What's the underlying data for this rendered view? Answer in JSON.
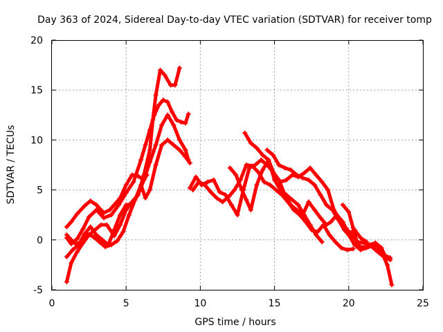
{
  "chart_data": {
    "type": "scatter",
    "title": "Day 363 of 2024, Sidereal Day-to-day VTEC variation (SDTVAR) for receiver tomp",
    "xlabel": "GPS time / hours",
    "ylabel": "SDTVAR / TECUs",
    "xlim": [
      0,
      25
    ],
    "ylim": [
      -5,
      20
    ],
    "xticks": [
      "0",
      "5",
      "10",
      "15",
      "20",
      "25"
    ],
    "yticks": [
      "-5",
      "0",
      "5",
      "10",
      "15",
      "20"
    ],
    "grid": true,
    "marker": "+",
    "color": "#ff0000",
    "series": [
      {
        "x": [
          1.0,
          1.3,
          1.7,
          2.2,
          2.6,
          3.0,
          3.5,
          3.9,
          4.2,
          4.6,
          5.0,
          5.4,
          5.8,
          6.2,
          6.4
        ],
        "y": [
          1.3,
          1.8,
          2.6,
          3.4,
          3.9,
          3.5,
          2.7,
          3.0,
          3.5,
          4.2,
          5.5,
          6.5,
          6.4,
          6.0,
          6.5
        ]
      },
      {
        "x": [
          1.0,
          1.3,
          1.7,
          2.1,
          2.5,
          3.0,
          3.5,
          4.0,
          4.5,
          5.0,
          5.5,
          6.0,
          6.3,
          6.6,
          6.9,
          7.2,
          7.5,
          7.8,
          8.1,
          8.4,
          8.7,
          9.0,
          9.2
        ],
        "y": [
          0.2,
          -0.4,
          0.1,
          1.1,
          2.3,
          3.0,
          2.2,
          2.5,
          3.5,
          4.7,
          5.8,
          8.0,
          9.5,
          11.0,
          12.5,
          13.5,
          14.0,
          13.8,
          12.8,
          12.0,
          11.8,
          11.7,
          12.6
        ]
      },
      {
        "x": [
          1.0,
          1.4,
          1.8,
          2.2,
          2.6,
          3.0,
          3.4,
          3.8,
          4.2,
          4.6,
          5.0,
          5.4,
          5.8,
          6.2,
          6.6,
          6.8,
          7.0,
          7.3,
          7.6,
          8.0,
          8.3,
          8.6
        ],
        "y": [
          -1.7,
          -1.0,
          -0.5,
          0.6,
          1.3,
          0.5,
          0.0,
          -0.5,
          1.0,
          2.5,
          3.5,
          3.6,
          4.5,
          6.5,
          9.0,
          12.0,
          14.5,
          17.0,
          16.5,
          15.5,
          15.5,
          17.2
        ]
      },
      {
        "x": [
          1.0,
          1.3,
          1.7,
          2.1,
          2.5,
          2.9,
          3.3,
          3.7,
          4.2,
          4.6,
          5.0,
          5.4,
          5.8,
          6.2,
          6.6,
          7.0,
          7.4,
          7.8,
          8.2,
          8.6,
          9.0,
          9.2
        ],
        "y": [
          -4.2,
          -2.3,
          -1.2,
          -0.3,
          0.5,
          1.0,
          1.5,
          1.5,
          0.4,
          1.5,
          3.0,
          3.8,
          4.5,
          6.0,
          7.8,
          9.5,
          11.5,
          12.5,
          11.5,
          10.0,
          9.0,
          8.0
        ]
      },
      {
        "x": [
          1.0,
          1.3,
          1.6,
          2.0,
          2.4,
          2.8,
          3.2,
          3.6,
          4.0,
          4.4,
          4.8,
          5.2,
          5.6,
          6.0,
          6.3,
          6.6,
          7.0,
          7.4,
          7.8,
          8.2,
          8.6,
          9.0,
          9.3
        ],
        "y": [
          0.5,
          0.0,
          -0.4,
          -0.2,
          0.6,
          0.3,
          -0.2,
          -0.7,
          -0.5,
          -0.1,
          0.8,
          2.5,
          4.0,
          5.5,
          4.2,
          5.0,
          7.5,
          9.5,
          10.0,
          9.5,
          9.0,
          8.3,
          7.7
        ]
      },
      {
        "x": [
          9.3,
          9.7,
          10.1,
          10.5,
          10.9,
          11.3,
          11.7,
          12.1,
          12.5,
          12.9,
          13.3,
          13.7,
          14.1,
          14.5,
          14.9,
          15.3,
          15.7,
          16.1,
          16.5,
          16.9,
          17.3,
          17.7,
          18.1,
          18.5,
          18.8,
          19.2,
          19.6,
          20.0,
          20.4,
          20.8,
          21.2
        ],
        "y": [
          5.2,
          6.3,
          5.5,
          5.8,
          6.0,
          4.8,
          4.5,
          3.5,
          2.5,
          5.0,
          7.2,
          7.5,
          8.0,
          7.5,
          6.8,
          6.0,
          4.5,
          3.5,
          3.0,
          2.5,
          3.8,
          3.0,
          2.2,
          1.5,
          1.8,
          2.5,
          1.8,
          0.6,
          1.0,
          0.2,
          -0.2
        ]
      },
      {
        "x": [
          9.5,
          9.9,
          10.3,
          10.7,
          11.1,
          11.5,
          11.9,
          12.3,
          12.7,
          13.1,
          13.5,
          13.9,
          14.3,
          14.7,
          15.1,
          15.5,
          15.9,
          16.3,
          16.7,
          17.1,
          17.5,
          17.9,
          18.3,
          18.7,
          19.1,
          19.5,
          19.9,
          20.3
        ],
        "y": [
          5.0,
          5.8,
          5.5,
          4.8,
          4.2,
          3.8,
          4.3,
          5.0,
          6.0,
          7.5,
          7.4,
          6.8,
          5.8,
          5.5,
          5.0,
          4.5,
          3.8,
          3.0,
          2.5,
          1.8,
          1.0,
          0.8,
          1.5,
          0.5,
          -0.2,
          -0.8,
          -1.0,
          -0.9
        ]
      },
      {
        "x": [
          12.0,
          12.4,
          12.8,
          13.1,
          13.4,
          13.8,
          14.2,
          14.6,
          15.0,
          15.4,
          15.8,
          16.2,
          16.6,
          17.0,
          17.4,
          17.8,
          18.2
        ],
        "y": [
          7.2,
          6.5,
          5.0,
          4.0,
          3.0,
          5.5,
          7.0,
          8.0,
          6.0,
          5.0,
          4.5,
          4.0,
          3.5,
          2.5,
          1.5,
          0.5,
          -0.2
        ]
      },
      {
        "x": [
          13.0,
          13.4,
          13.8,
          14.2,
          14.6,
          15.0,
          15.4,
          15.8,
          16.2,
          16.6,
          17.0,
          17.4,
          17.8,
          18.2,
          18.6,
          19.0,
          19.4,
          19.8,
          20.2,
          20.6,
          21.0,
          21.4,
          21.8,
          22.2,
          22.5,
          22.8
        ],
        "y": [
          10.7,
          9.7,
          9.2,
          8.5,
          8.0,
          6.5,
          5.8,
          6.0,
          6.5,
          6.3,
          6.7,
          7.2,
          6.5,
          5.8,
          5.0,
          3.0,
          2.0,
          1.2,
          0.5,
          -0.2,
          -0.3,
          -0.5,
          -1.0,
          -1.5,
          -1.6,
          -1.8
        ]
      },
      {
        "x": [
          14.5,
          14.9,
          15.3,
          15.7,
          16.1,
          16.5,
          16.9,
          17.3,
          17.7,
          18.1,
          18.5,
          18.9,
          19.3,
          19.7,
          20.0,
          20.4,
          20.8,
          21.2,
          21.6,
          22.0,
          22.3,
          22.6,
          22.9
        ],
        "y": [
          9.0,
          8.5,
          7.5,
          7.2,
          7.0,
          6.5,
          6.2,
          6.0,
          5.5,
          4.5,
          3.5,
          3.0,
          2.0,
          1.0,
          0.5,
          -0.5,
          -1.0,
          -0.8,
          -0.6,
          -0.8,
          -1.5,
          -2.5,
          -4.5
        ]
      },
      {
        "x": [
          19.6,
          20.0,
          20.3,
          20.6,
          21.0,
          21.4,
          21.8,
          22.2,
          22.5,
          22.8
        ],
        "y": [
          3.5,
          2.8,
          1.2,
          -0.5,
          -0.8,
          -0.5,
          -0.3,
          -0.8,
          -1.8,
          -2.0
        ]
      }
    ]
  }
}
